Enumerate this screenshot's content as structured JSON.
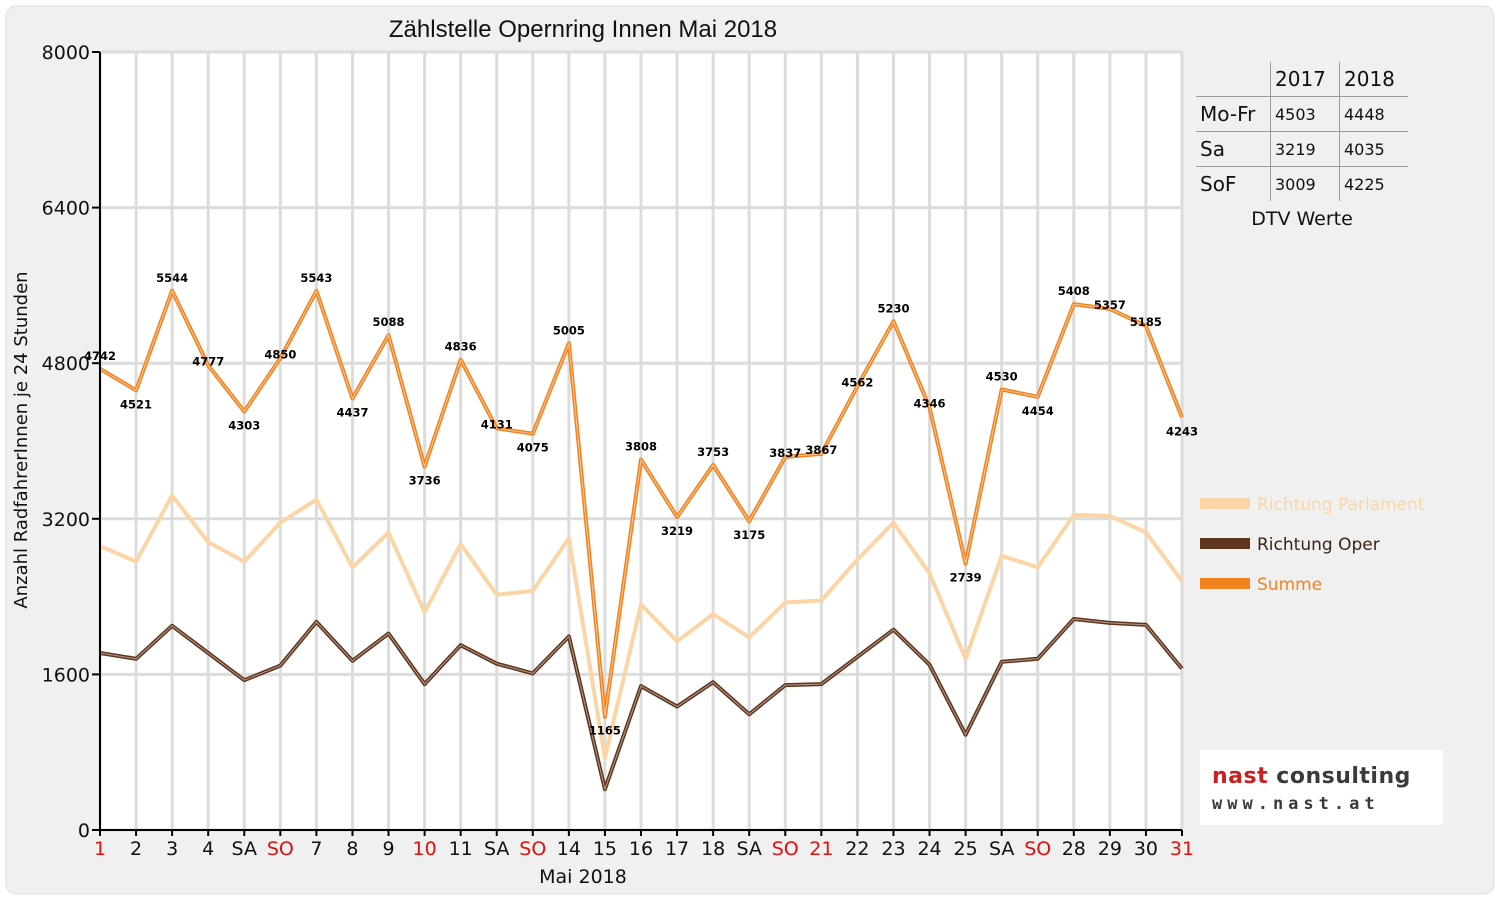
{
  "chart_data": {
    "type": "line",
    "title": "Zählstelle Opernring Innen Mai 2018",
    "xlabel": "Mai 2018",
    "ylabel": "Anzahl RadfahrerInnen je 24 Stunden",
    "ylim": [
      0,
      8000
    ],
    "yticks": [
      0,
      1600,
      3200,
      4800,
      6400,
      8000
    ],
    "grid": true,
    "legend_position": "right",
    "categories": [
      "1",
      "2",
      "3",
      "4",
      "SA",
      "SO",
      "7",
      "8",
      "9",
      "10",
      "11",
      "SA",
      "SO",
      "14",
      "15",
      "16",
      "17",
      "18",
      "SA",
      "SO",
      "21",
      "22",
      "23",
      "24",
      "25",
      "SA",
      "SO",
      "28",
      "29",
      "30",
      "31"
    ],
    "red_categories": [
      0,
      5,
      9,
      12,
      19,
      20,
      26,
      30
    ],
    "series": [
      {
        "name": "Richtung Parlament",
        "color": "#fbd5a5",
        "values": [
          2920,
          2760,
          3440,
          2960,
          2760,
          3160,
          3400,
          2700,
          3060,
          2240,
          2940,
          2420,
          2460,
          3000,
          740,
          2320,
          1940,
          2220,
          1980,
          2340,
          2360,
          2780,
          3160,
          2640,
          1760,
          2820,
          2700,
          3240,
          3230,
          3060,
          2560
        ],
        "data_labels": false
      },
      {
        "name": "Richtung Oper",
        "color": "#5e3620",
        "values": [
          1820,
          1760,
          2100,
          1820,
          1540,
          1690,
          2140,
          1740,
          2020,
          1500,
          1900,
          1710,
          1610,
          1990,
          420,
          1480,
          1270,
          1520,
          1190,
          1490,
          1500,
          1780,
          2060,
          1700,
          980,
          1730,
          1760,
          2170,
          2130,
          2110,
          1660
        ],
        "data_labels": false
      },
      {
        "name": "Summe",
        "color": "#f2821e",
        "values": [
          4742,
          4521,
          5544,
          4777,
          4303,
          4850,
          5543,
          4437,
          5088,
          3736,
          4836,
          4131,
          4075,
          5005,
          1165,
          3808,
          3219,
          3753,
          3175,
          3837,
          3867,
          4562,
          5230,
          4346,
          2739,
          4530,
          4454,
          5408,
          5357,
          5185,
          4243
        ],
        "data_labels": true
      }
    ]
  },
  "dtv_table": {
    "caption": "DTV Werte",
    "headers": [
      "2017",
      "2018"
    ],
    "rows": [
      {
        "label": "Mo-Fr",
        "v2017": "4503",
        "v2018": "4448"
      },
      {
        "label": "Sa",
        "v2017": "3219",
        "v2018": "4035"
      },
      {
        "label": "SoF",
        "v2017": "3009",
        "v2018": "4225"
      }
    ]
  },
  "logo": {
    "name_part1": "nast",
    "name_part2": "consulting",
    "url": "www.nast.at"
  }
}
